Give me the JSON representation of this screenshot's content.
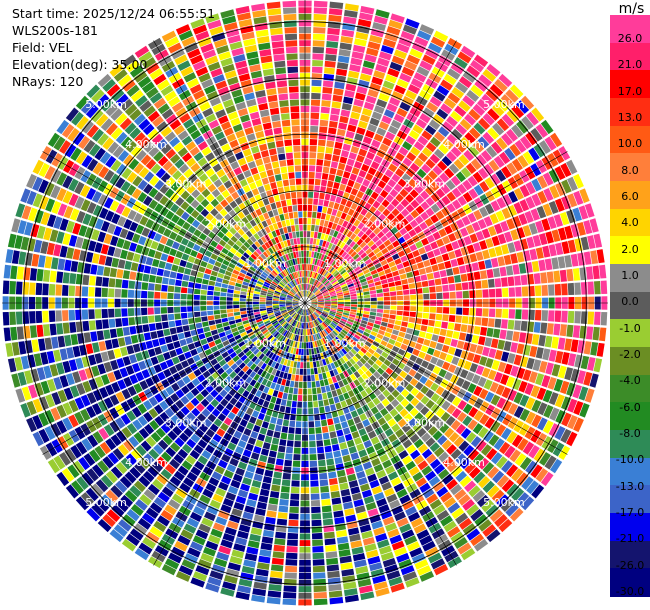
{
  "header": {
    "start_time": "Start time: 2025/12/24 06:55:51",
    "instrument": "WLS200s-181",
    "field": "Field: VEL",
    "elevation": "Elevation(deg): 35.00",
    "nrays": "NRays: 120"
  },
  "colorbar": {
    "unit": "m/s",
    "ticks": [
      "26.0",
      "21.0",
      "17.0",
      "13.0",
      "10.0",
      "8.0",
      "6.0",
      "4.0",
      "2.0",
      "1.0",
      "0.0",
      "-1.0",
      "-2.0",
      "-4.0",
      "-6.0",
      "-8.0",
      "-10.0",
      "-13.0",
      "-17.0",
      "-21.0",
      "-26.0",
      "-30.0"
    ],
    "colors": [
      "#ff3c9a",
      "#ff1f6a",
      "#ff0000",
      "#ff2e12",
      "#ff5a14",
      "#ff7f3a",
      "#ffa21a",
      "#ffd400",
      "#ffff00",
      "#8c8c8c",
      "#5c5c5c",
      "#9acd32",
      "#6b8e23",
      "#3c8c28",
      "#228b22",
      "#2e8b57",
      "#3a7fd5",
      "#3c64c8",
      "#0000ee",
      "#14146e",
      "#000080"
    ]
  },
  "range_labels": [
    "1.00km",
    "2.00km",
    "3.00km",
    "4.00km",
    "5.00km"
  ],
  "chart_data": {
    "type": "heatmap",
    "title": "",
    "field": "VEL",
    "units": "m/s",
    "n_rays": 120,
    "range_rings_km": [
      1,
      2,
      3,
      4,
      5
    ],
    "max_range_km": 5,
    "colorscale_range": [
      -30,
      26
    ],
    "description_pattern": {
      "positive_sector": "north and east (pink/red/yellow)",
      "negative_sector": "south and west (blue/navy/green)"
    }
  }
}
